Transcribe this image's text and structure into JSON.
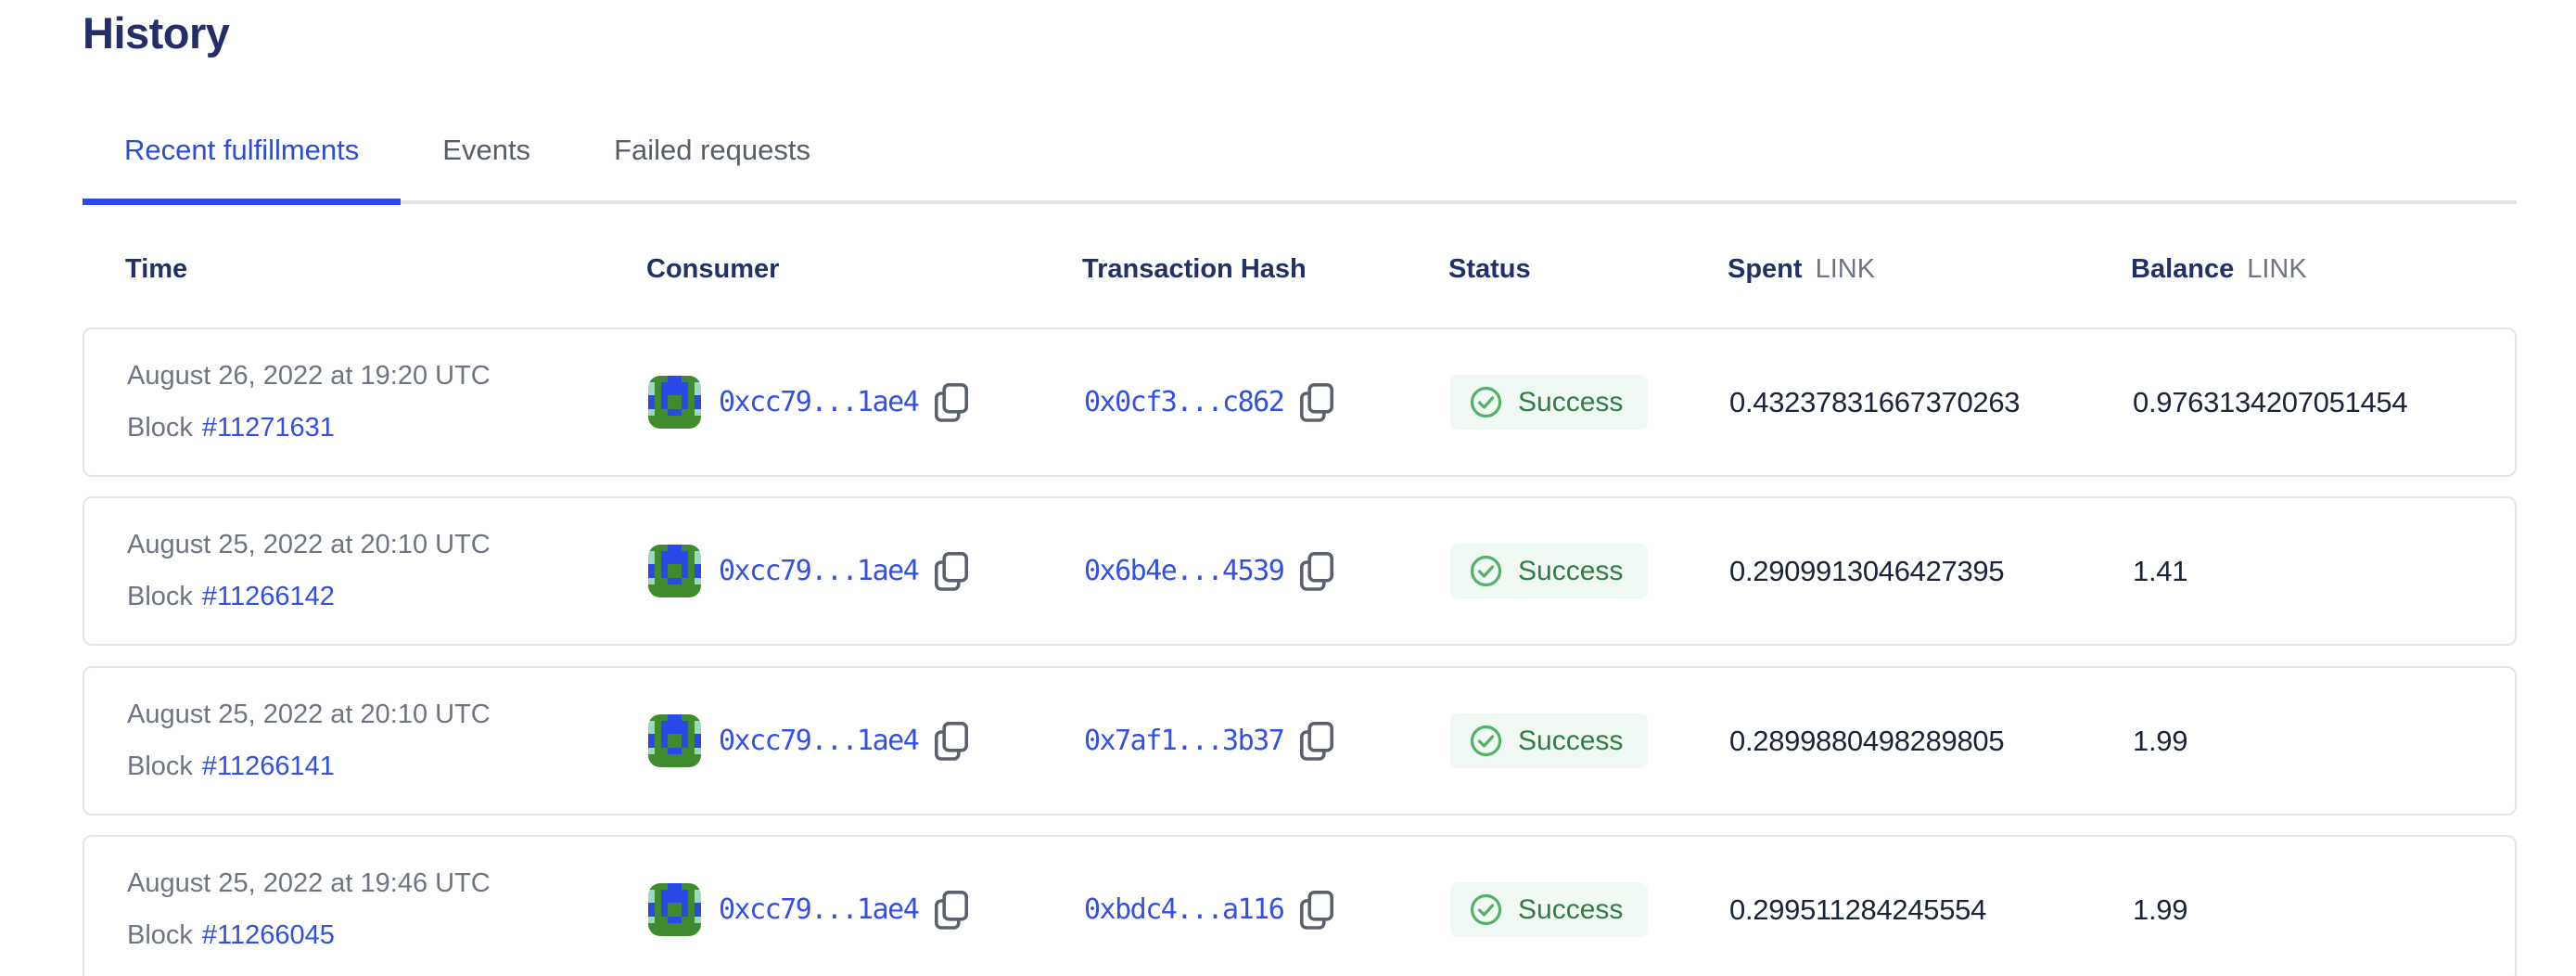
{
  "page": {
    "title": "History"
  },
  "tabs": {
    "items": [
      {
        "label": "Recent fulfillments",
        "active": true
      },
      {
        "label": "Events",
        "active": false
      },
      {
        "label": "Failed requests",
        "active": false
      }
    ]
  },
  "table": {
    "headers": {
      "time": "Time",
      "consumer": "Consumer",
      "tx": "Transaction Hash",
      "status": "Status",
      "spent": "Spent",
      "spent_unit": "LINK",
      "balance": "Balance",
      "balance_unit": "LINK"
    },
    "block_label": "Block",
    "rows": [
      {
        "time": "August 26, 2022 at 19:20 UTC",
        "block_number": "#11271631",
        "consumer_address": "0xcc79...1ae4",
        "tx_hash": "0x0cf3...c862",
        "status": "Success",
        "spent": "0.43237831667370263",
        "balance": "0.9763134207051454"
      },
      {
        "time": "August 25, 2022 at 20:10 UTC",
        "block_number": "#11266142",
        "consumer_address": "0xcc79...1ae4",
        "tx_hash": "0x6b4e...4539",
        "status": "Success",
        "spent": "0.2909913046427395",
        "balance": "1.41"
      },
      {
        "time": "August 25, 2022 at 20:10 UTC",
        "block_number": "#11266141",
        "consumer_address": "0xcc79...1ae4",
        "tx_hash": "0x7af1...3b37",
        "status": "Success",
        "spent": "0.2899880498289805",
        "balance": "1.99"
      },
      {
        "time": "August 25, 2022 at 19:46 UTC",
        "block_number": "#11266045",
        "consumer_address": "0xcc79...1ae4",
        "tx_hash": "0xbdc4...a116",
        "status": "Success",
        "spent": "0.299511284245554",
        "balance": "1.99"
      }
    ]
  },
  "avatar": {
    "pattern": [
      "GGGBBGGG",
      "TGBBBBGT",
      "TGBBBBGT",
      "BGBGGBGB",
      "BGBGGBGB",
      "TGGBBGGT",
      "GGGGGGGG",
      "GGGGGGGG"
    ],
    "palette": {
      "G": "#3f8b2e",
      "B": "#2b49e8",
      "T": "#9bd8c0"
    }
  },
  "icons": {
    "copy": "copy-icon",
    "status_success": "check-circle-icon"
  },
  "colors": {
    "title_navy": "#262e6a",
    "header_navy": "#233067",
    "accent_blue": "#2c4bd8",
    "link_blue": "#3350e6",
    "muted_gray": "#6e7582",
    "tab_inactive": "#585e69",
    "success_green": "#2e7d45",
    "success_icon_green": "#53b168",
    "success_badge_bg": "#f1f9f4",
    "card_border": "#e4e6ea",
    "tab_line": "#e4e5e9"
  }
}
